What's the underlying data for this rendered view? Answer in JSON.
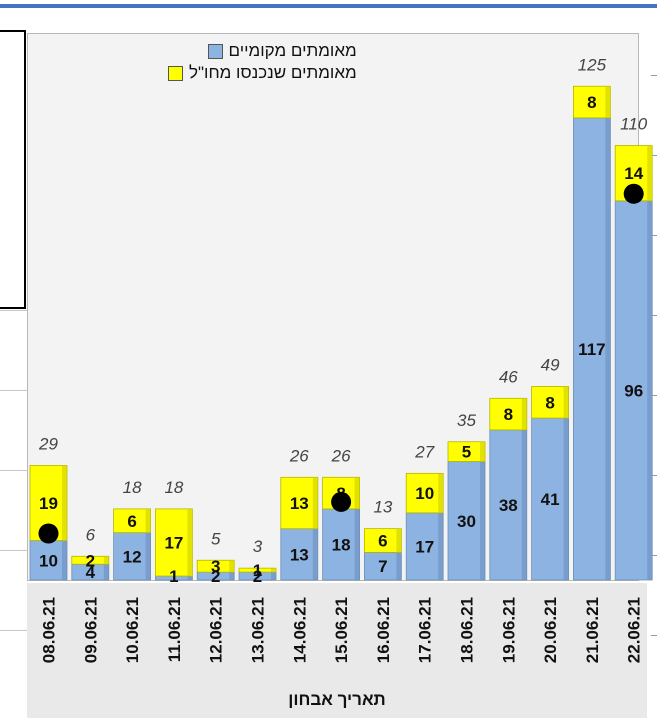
{
  "chart_data": {
    "type": "bar",
    "stacked": true,
    "categories": [
      "08.06.21",
      "09.06.21",
      "10.06.21",
      "11.06.21",
      "12.06.21",
      "13.06.21",
      "14.06.21",
      "15.06.21",
      "16.06.21",
      "17.06.21",
      "18.06.21",
      "19.06.21",
      "20.06.21",
      "21.06.21",
      "22.06.21"
    ],
    "series": [
      {
        "name": "מאומתים מקומיים",
        "values": [
          10,
          4,
          12,
          1,
          2,
          2,
          13,
          18,
          7,
          17,
          30,
          38,
          41,
          117,
          96
        ],
        "color": "#8db3e2"
      },
      {
        "name": "מאומתים שנכנסו מחו\"ל",
        "values": [
          19,
          2,
          6,
          17,
          3,
          1,
          13,
          8,
          6,
          10,
          5,
          8,
          8,
          8,
          14
        ],
        "color": "#ffff00"
      }
    ],
    "totals": [
      29,
      6,
      18,
      18,
      5,
      3,
      26,
      26,
      13,
      27,
      35,
      46,
      49,
      125,
      110
    ],
    "markers": [
      {
        "category": "08.06.21",
        "value": 10
      },
      {
        "category": "15.06.21",
        "value": 18
      },
      {
        "category": "22.06.21",
        "value": 96
      }
    ],
    "xlabel": "תאריך אבחון",
    "ylabel": "",
    "ylim": [
      0,
      130
    ],
    "legend_position": "top",
    "grid": false
  }
}
